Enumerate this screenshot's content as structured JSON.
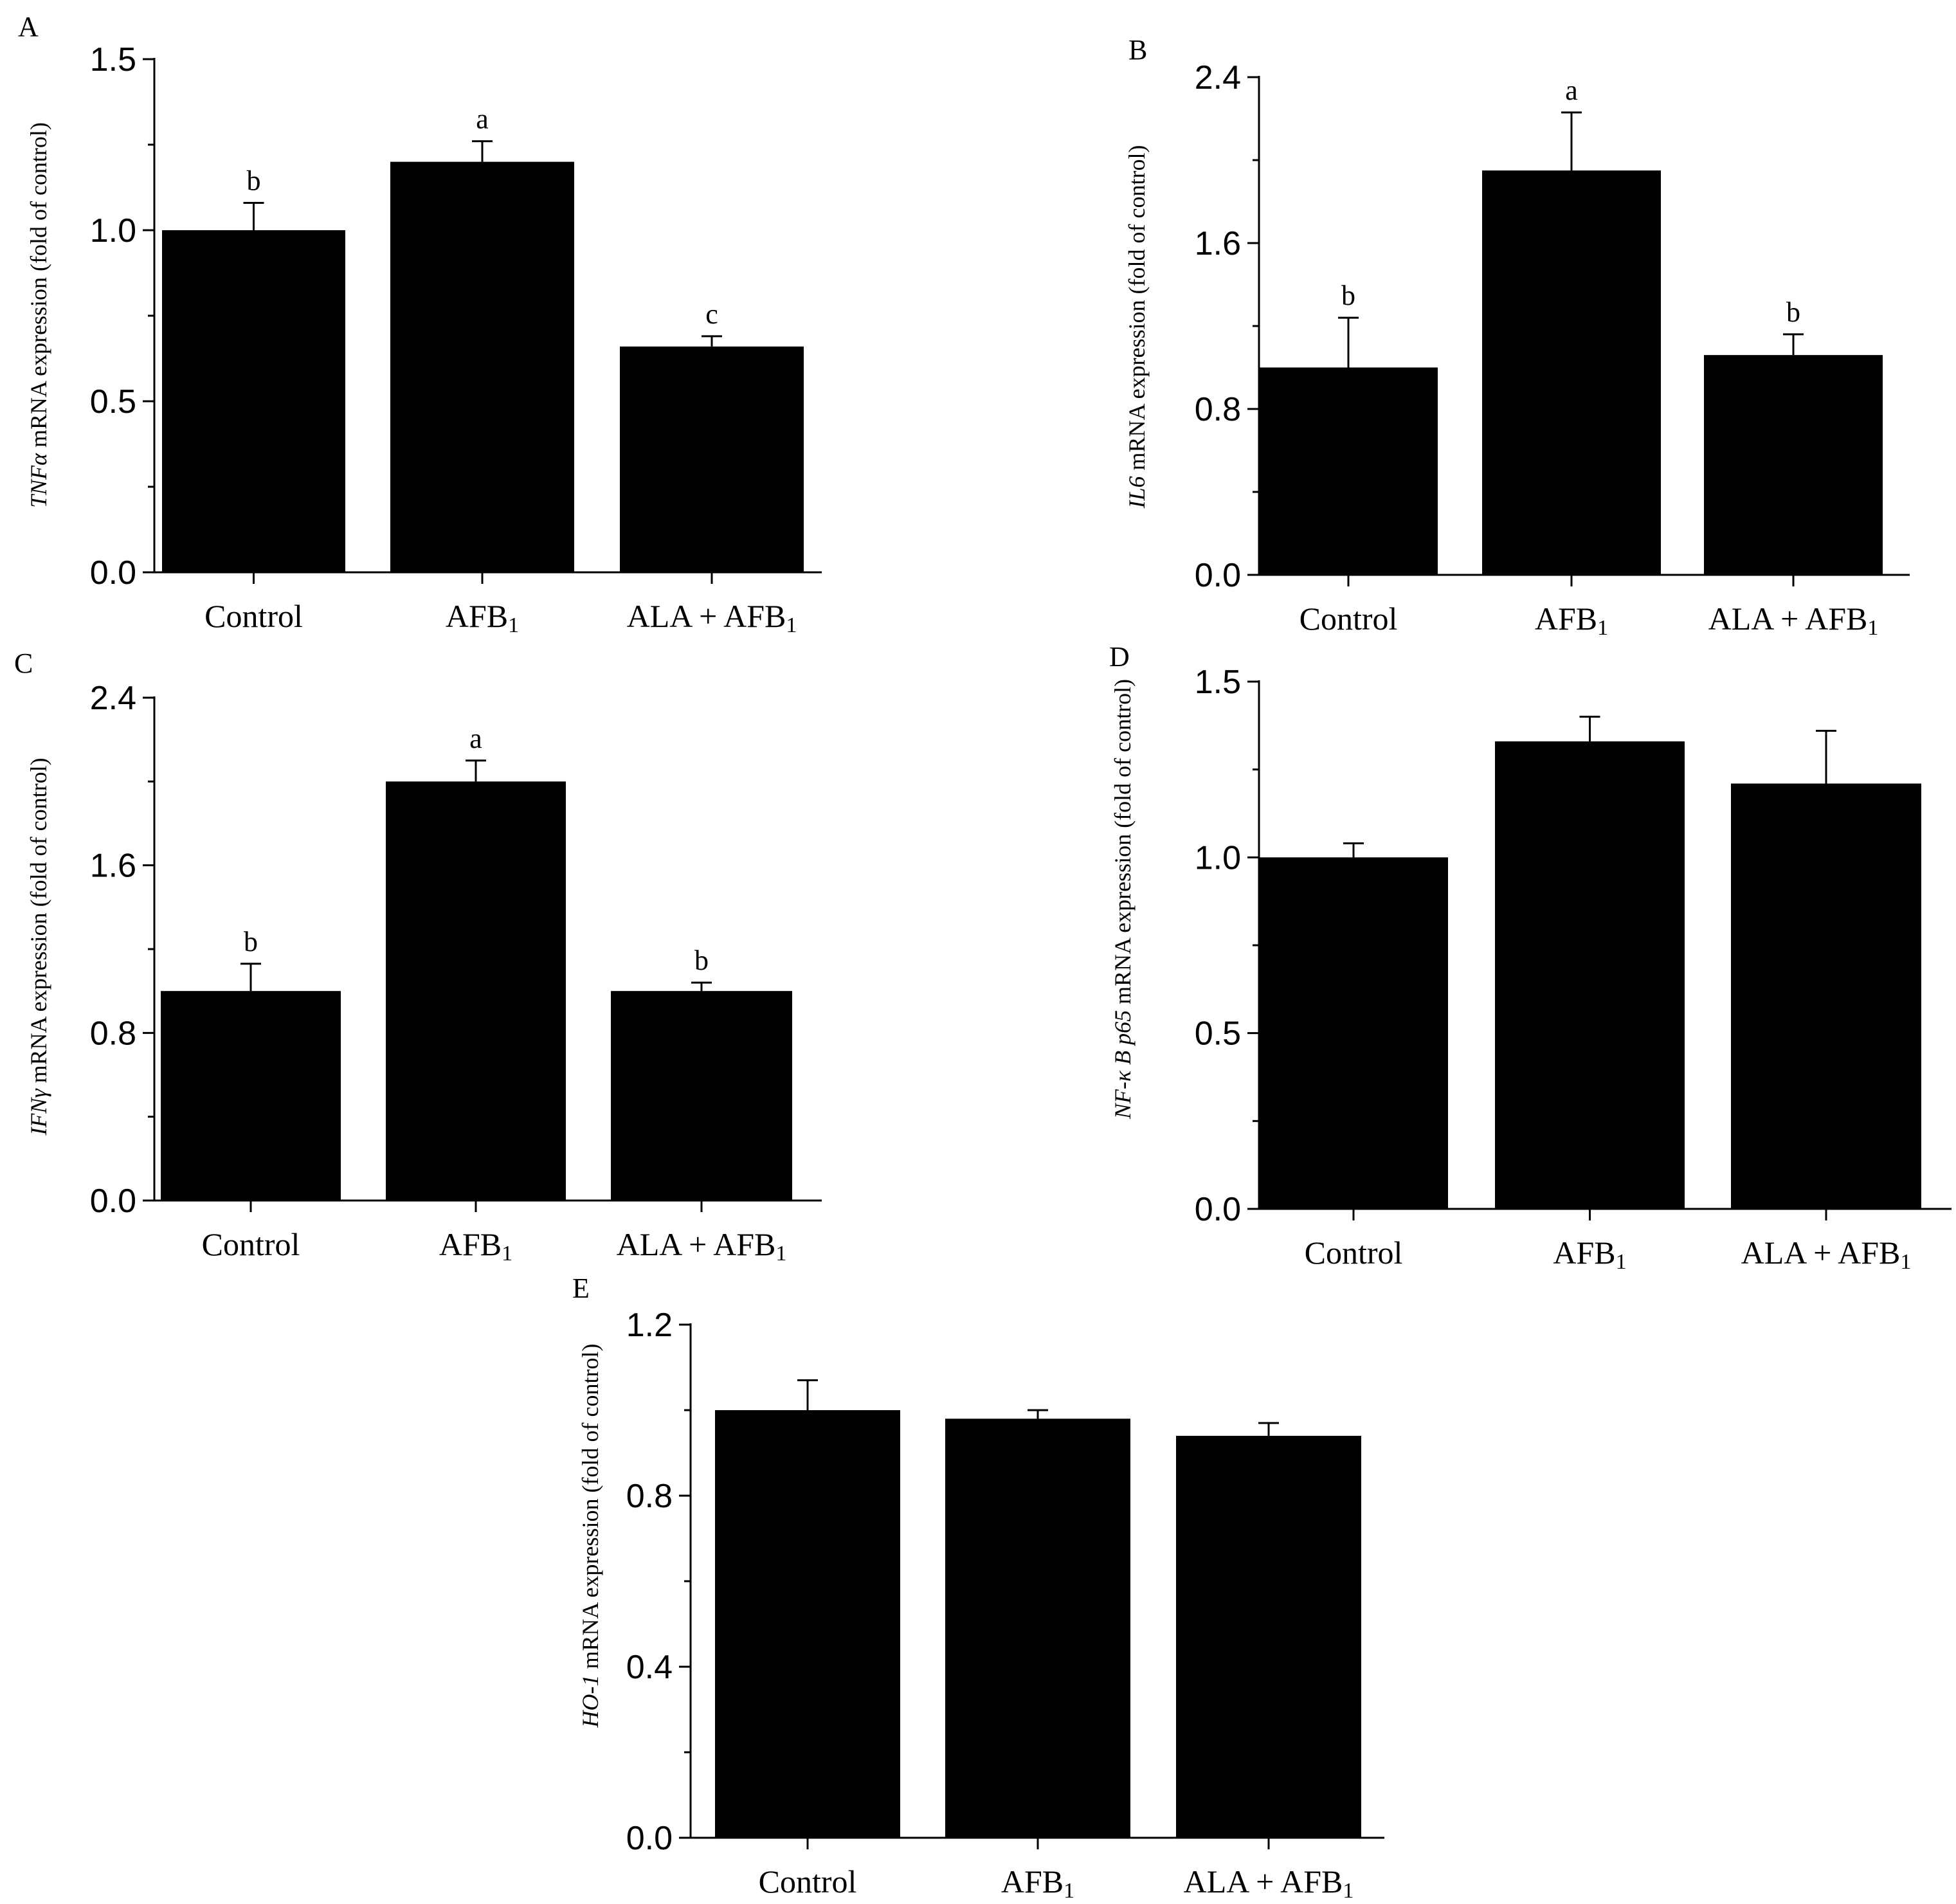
{
  "figure": {
    "colors": {
      "bar": "#000000",
      "axis": "#000000",
      "errorbar": "#000000",
      "background": "#ffffff"
    }
  },
  "chart_data": [
    {
      "panel": "A",
      "type": "bar",
      "categories": [
        "Control",
        "AFB",
        "ALA + AFB"
      ],
      "category_subscripts": [
        "",
        "1",
        "1"
      ],
      "values": [
        1.0,
        1.2,
        0.66
      ],
      "errors": [
        0.08,
        0.06,
        0.03
      ],
      "letters": [
        "b",
        "a",
        "c"
      ],
      "ylabel_gene": "TNFα",
      "ylabel_rest": " mRNA expression (fold of control)",
      "ylim": [
        0,
        1.5
      ],
      "yticks": [
        "0.0",
        "0.5",
        "1.0",
        "1.5"
      ],
      "ytick_values": [
        0,
        0.5,
        1.0,
        1.5
      ],
      "grid": false
    },
    {
      "panel": "B",
      "type": "bar",
      "categories": [
        "Control",
        "AFB",
        "ALA + AFB"
      ],
      "category_subscripts": [
        "",
        "1",
        "1"
      ],
      "values": [
        1.0,
        1.95,
        1.06
      ],
      "errors": [
        0.24,
        0.28,
        0.1
      ],
      "letters": [
        "b",
        "a",
        "b"
      ],
      "ylabel_gene": "IL6",
      "ylabel_rest": " mRNA expression (fold of control)",
      "ylim": [
        0,
        2.4
      ],
      "yticks": [
        "0.0",
        "0.8",
        "1.6",
        "2.4"
      ],
      "ytick_values": [
        0,
        0.8,
        1.6,
        2.4
      ],
      "grid": false
    },
    {
      "panel": "C",
      "type": "bar",
      "categories": [
        "Control",
        "AFB",
        "ALA + AFB"
      ],
      "category_subscripts": [
        "",
        "1",
        "1"
      ],
      "values": [
        1.0,
        2.0,
        1.0
      ],
      "errors": [
        0.13,
        0.1,
        0.04
      ],
      "letters": [
        "b",
        "a",
        "b"
      ],
      "ylabel_gene": "IFNγ",
      "ylabel_rest": " mRNA expression (fold of control)",
      "ylim": [
        0,
        2.4
      ],
      "yticks": [
        "0.0",
        "0.8",
        "1.6",
        "2.4"
      ],
      "ytick_values": [
        0,
        0.8,
        1.6,
        2.4
      ],
      "grid": false
    },
    {
      "panel": "D",
      "type": "bar",
      "categories": [
        "Control",
        "AFB",
        "ALA + AFB"
      ],
      "category_subscripts": [
        "",
        "1",
        "1"
      ],
      "values": [
        1.0,
        1.33,
        1.21
      ],
      "errors": [
        0.04,
        0.07,
        0.15
      ],
      "letters": [
        "",
        "",
        ""
      ],
      "ylabel_gene": "NF-κ B p65",
      "ylabel_rest": " mRNA expression (fold of control)",
      "ylim": [
        0,
        1.5
      ],
      "yticks": [
        "0.0",
        "0.5",
        "1.0",
        "1.5"
      ],
      "ytick_values": [
        0,
        0.5,
        1.0,
        1.5
      ],
      "grid": false
    },
    {
      "panel": "E",
      "type": "bar",
      "categories": [
        "Control",
        "AFB",
        "ALA + AFB"
      ],
      "category_subscripts": [
        "",
        "1",
        "1"
      ],
      "values": [
        1.0,
        0.98,
        0.94
      ],
      "errors": [
        0.07,
        0.02,
        0.03
      ],
      "letters": [
        "",
        "",
        ""
      ],
      "ylabel_gene": "HO-1",
      "ylabel_rest": " mRNA expression (fold of control)",
      "ylim": [
        0,
        1.2
      ],
      "yticks": [
        "0.0",
        "0.4",
        "0.8",
        "1.2"
      ],
      "ytick_values": [
        0,
        0.4,
        0.8,
        1.2
      ],
      "grid": false
    }
  ]
}
